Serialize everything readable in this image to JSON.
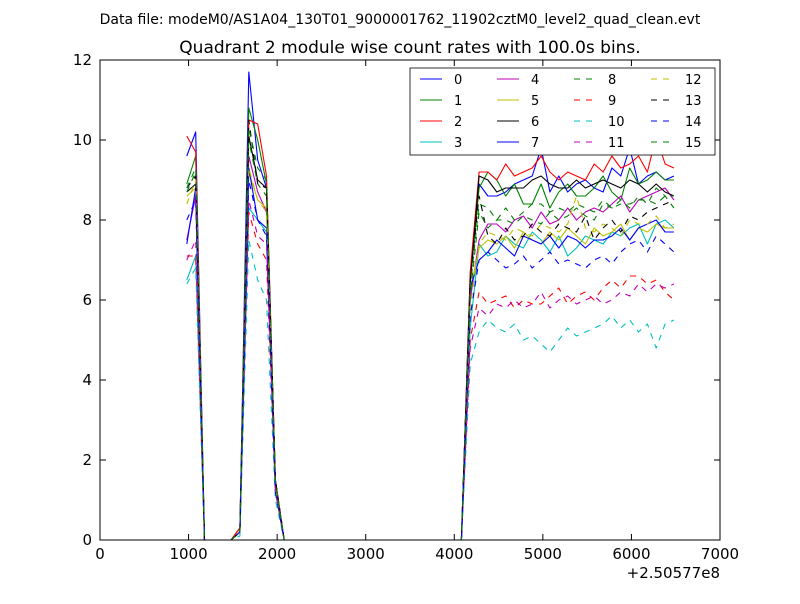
{
  "suptitle": "Data file: modeM0/AS1A04_130T01_9000001762_11902cztM0_level2_quad_clean.evt",
  "chart_data": {
    "type": "line",
    "title": "Quadrant 2 module wise count rates with 100.0s bins.",
    "xlabel": "",
    "ylabel": "",
    "x_offset_label": "+2.50577e8",
    "xlim": [
      0,
      7000
    ],
    "ylim": [
      0,
      12
    ],
    "xticks": [
      0,
      1000,
      2000,
      3000,
      4000,
      5000,
      6000,
      7000
    ],
    "yticks": [
      0,
      2,
      4,
      6,
      8,
      10,
      12
    ],
    "grid": false,
    "legend_position": "upper right",
    "legend_columns": 4,
    "x": [
      980,
      1080,
      1180,
      1280,
      1380,
      1480,
      1580,
      1680,
      1780,
      1880,
      1980,
      2080,
      2180,
      2280,
      2380,
      2480,
      2580,
      2680,
      2780,
      2880,
      2980,
      3080,
      3180,
      3280,
      3380,
      3480,
      3580,
      3680,
      3780,
      3880,
      3980,
      4080,
      4180,
      4280,
      4380,
      4480,
      4580,
      4680,
      4780,
      4880,
      4980,
      5080,
      5180,
      5280,
      5380,
      5480,
      5580,
      5680,
      5780,
      5880,
      5980,
      6080,
      6180,
      6280,
      6380,
      6480
    ],
    "series": [
      {
        "name": "0",
        "color": "#0000ff",
        "dash": "solid",
        "values": [
          9.6,
          10.2,
          0,
          0,
          0,
          0,
          0.3,
          11.7,
          9.5,
          8.8,
          1.5,
          0,
          0,
          0,
          0,
          0,
          0,
          0,
          0,
          0,
          0,
          0,
          0,
          0,
          0,
          0,
          0,
          0,
          0,
          0,
          0,
          0,
          6.6,
          8.9,
          8.6,
          8.6,
          8.7,
          8.9,
          9.0,
          9.1,
          9.8,
          8.7,
          9.1,
          8.7,
          8.9,
          9.0,
          8.8,
          8.7,
          9.3,
          9.1,
          9.8,
          8.9,
          9.1,
          9.2,
          9.0,
          9.1
        ]
      },
      {
        "name": "1",
        "color": "#008000",
        "dash": "solid",
        "values": [
          8.9,
          9.6,
          0,
          0,
          0,
          0,
          0.3,
          10.8,
          10.0,
          8.9,
          1.5,
          0,
          0,
          0,
          0,
          0,
          0,
          0,
          0,
          0,
          0,
          0,
          0,
          0,
          0,
          0,
          0,
          0,
          0,
          0,
          0,
          0,
          6.5,
          8.8,
          9.2,
          9.0,
          8.6,
          8.9,
          8.4,
          8.4,
          8.9,
          8.3,
          8.7,
          8.9,
          8.6,
          8.6,
          8.8,
          9.1,
          8.7,
          8.5,
          9.3,
          8.9,
          9.0,
          9.2,
          9.0,
          9.0
        ]
      },
      {
        "name": "2",
        "color": "#ff0000",
        "dash": "solid",
        "values": [
          10.1,
          9.7,
          0,
          0,
          0,
          0,
          0.3,
          10.5,
          10.4,
          9.1,
          1.5,
          0,
          0,
          0,
          0,
          0,
          0,
          0,
          0,
          0,
          0,
          0,
          0,
          0,
          0,
          0,
          0,
          0,
          0,
          0,
          0,
          0,
          6.7,
          9.2,
          9.2,
          9.0,
          9.4,
          9.1,
          9.2,
          9.3,
          9.6,
          9.2,
          9.0,
          9.2,
          9.1,
          9.0,
          9.4,
          9.2,
          9.6,
          9.3,
          9.4,
          9.6,
          9.2,
          10.1,
          9.4,
          9.3
        ]
      },
      {
        "name": "3",
        "color": "#00bfbf",
        "dash": "solid",
        "values": [
          6.5,
          7.1,
          0,
          0,
          0,
          0,
          0.2,
          8.3,
          8.0,
          7.7,
          1.2,
          0,
          0,
          0,
          0,
          0,
          0,
          0,
          0,
          0,
          0,
          0,
          0,
          0,
          0,
          0,
          0,
          0,
          0,
          0,
          0,
          0,
          5.3,
          7.4,
          7.1,
          7.2,
          7.6,
          7.4,
          7.3,
          7.7,
          7.5,
          7.2,
          7.6,
          7.1,
          7.3,
          7.6,
          7.5,
          7.4,
          7.7,
          7.6,
          7.8,
          7.9,
          7.4,
          7.9,
          8.0,
          7.8
        ]
      },
      {
        "name": "4",
        "color": "#bf00bf",
        "dash": "solid",
        "values": [
          7.5,
          8.6,
          0,
          0,
          0,
          0,
          0.2,
          9.6,
          8.7,
          8.2,
          1.4,
          0,
          0,
          0,
          0,
          0,
          0,
          0,
          0,
          0,
          0,
          0,
          0,
          0,
          0,
          0,
          0,
          0,
          0,
          0,
          0,
          0,
          6.0,
          7.5,
          7.9,
          7.9,
          7.7,
          8.0,
          8.1,
          7.8,
          8.2,
          7.9,
          8.0,
          8.3,
          8.0,
          8.2,
          8.3,
          8.2,
          8.4,
          8.6,
          8.2,
          8.5,
          8.6,
          8.7,
          8.8,
          8.5
        ]
      },
      {
        "name": "5",
        "color": "#bfbf00",
        "dash": "solid",
        "values": [
          8.6,
          8.8,
          0,
          0,
          0,
          0,
          0.2,
          9.2,
          8.5,
          8.3,
          1.4,
          0,
          0,
          0,
          0,
          0,
          0,
          0,
          0,
          0,
          0,
          0,
          0,
          0,
          0,
          0,
          0,
          0,
          0,
          0,
          0,
          0,
          6.2,
          7.3,
          7.5,
          7.4,
          7.6,
          7.3,
          7.7,
          7.5,
          7.4,
          7.7,
          7.5,
          7.8,
          7.6,
          7.4,
          7.8,
          7.6,
          7.7,
          7.9,
          7.5,
          7.8,
          7.7,
          7.9,
          7.8,
          7.8
        ]
      },
      {
        "name": "6",
        "color": "#000000",
        "dash": "solid",
        "values": [
          8.7,
          8.9,
          0,
          0,
          0,
          0,
          0.2,
          10.1,
          9.0,
          8.8,
          1.4,
          0,
          0,
          0,
          0,
          0,
          0,
          0,
          0,
          0,
          0,
          0,
          0,
          0,
          0,
          0,
          0,
          0,
          0,
          0,
          0,
          0,
          6.4,
          9.1,
          9.0,
          8.7,
          8.8,
          8.8,
          8.8,
          9.0,
          9.1,
          8.9,
          8.8,
          8.8,
          9.0,
          8.8,
          8.9,
          9.0,
          8.9,
          8.8,
          9.0,
          8.9,
          8.7,
          8.9,
          8.7,
          8.6
        ]
      },
      {
        "name": "7",
        "color": "#0000ff",
        "dash": "solid",
        "values": [
          7.4,
          8.8,
          0,
          0,
          0,
          0,
          0.2,
          9.3,
          8.0,
          7.8,
          1.3,
          0,
          0,
          0,
          0,
          0,
          0,
          0,
          0,
          0,
          0,
          0,
          0,
          0,
          0,
          0,
          0,
          0,
          0,
          0,
          0,
          0,
          6.3,
          7.0,
          7.2,
          7.5,
          7.3,
          7.1,
          7.6,
          7.5,
          7.4,
          7.6,
          7.3,
          7.6,
          7.5,
          7.3,
          7.5,
          7.5,
          7.6,
          7.8,
          7.5,
          7.8,
          7.9,
          8.0,
          7.7,
          7.7
        ]
      },
      {
        "name": "8",
        "color": "#008000",
        "dash": "dashed",
        "values": [
          8.7,
          9.2,
          0,
          0,
          0,
          0,
          0.2,
          10.0,
          8.9,
          8.6,
          1.4,
          0,
          0,
          0,
          0,
          0,
          0,
          0,
          0,
          0,
          0,
          0,
          0,
          0,
          0,
          0,
          0,
          0,
          0,
          0,
          0,
          0,
          6.3,
          8.4,
          8.3,
          8.0,
          8.3,
          8.0,
          8.2,
          8.4,
          8.4,
          8.2,
          8.3,
          8.2,
          8.4,
          8.3,
          8.2,
          8.5,
          8.3,
          8.4,
          8.4,
          8.5,
          8.5,
          8.4,
          8.6,
          8.6
        ]
      },
      {
        "name": "9",
        "color": "#ff0000",
        "dash": "dashed",
        "values": [
          7.1,
          7.1,
          0,
          0,
          0,
          0,
          0.2,
          8.2,
          7.4,
          7.0,
          1.2,
          0,
          0,
          0,
          0,
          0,
          0,
          0,
          0,
          0,
          0,
          0,
          0,
          0,
          0,
          0,
          0,
          0,
          0,
          0,
          0,
          0,
          5.0,
          6.2,
          5.9,
          6.0,
          6.1,
          5.8,
          6.0,
          5.9,
          5.9,
          6.1,
          6.3,
          5.9,
          6.1,
          6.2,
          6.0,
          6.3,
          6.5,
          6.3,
          6.6,
          6.6,
          6.4,
          6.5,
          6.2,
          6.0
        ]
      },
      {
        "name": "10",
        "color": "#00bfbf",
        "dash": "dashed",
        "values": [
          6.4,
          6.8,
          0,
          0,
          0,
          0,
          0.1,
          7.5,
          6.5,
          6.0,
          1.0,
          0,
          0,
          0,
          0,
          0,
          0,
          0,
          0,
          0,
          0,
          0,
          0,
          0,
          0,
          0,
          0,
          0,
          0,
          0,
          0,
          0,
          4.4,
          5.2,
          5.5,
          5.3,
          5.2,
          5.4,
          5.0,
          5.1,
          4.9,
          4.7,
          5.0,
          5.3,
          5.1,
          5.2,
          5.3,
          5.4,
          5.6,
          5.3,
          5.5,
          5.2,
          5.4,
          4.8,
          5.4,
          5.5
        ]
      },
      {
        "name": "11",
        "color": "#bf00bf",
        "dash": "dashed",
        "values": [
          7.0,
          7.5,
          0,
          0,
          0,
          0,
          0.2,
          8.5,
          7.6,
          7.4,
          1.2,
          0,
          0,
          0,
          0,
          0,
          0,
          0,
          0,
          0,
          0,
          0,
          0,
          0,
          0,
          0,
          0,
          0,
          0,
          0,
          0,
          0,
          4.8,
          5.8,
          5.6,
          5.9,
          5.8,
          6.0,
          5.8,
          5.9,
          6.2,
          5.8,
          6.0,
          6.1,
          5.9,
          6.0,
          6.1,
          5.9,
          6.0,
          6.2,
          6.1,
          6.4,
          6.2,
          6.4,
          6.3,
          6.4
        ]
      },
      {
        "name": "12",
        "color": "#bfbf00",
        "dash": "dashed",
        "values": [
          8.4,
          9.0,
          0,
          0,
          0,
          0,
          0.2,
          9.3,
          8.5,
          8.2,
          1.3,
          0,
          0,
          0,
          0,
          0,
          0,
          0,
          0,
          0,
          0,
          0,
          0,
          0,
          0,
          0,
          0,
          0,
          0,
          0,
          0,
          0,
          5.8,
          7.4,
          7.7,
          7.6,
          7.5,
          7.8,
          7.7,
          7.6,
          7.9,
          7.8,
          7.7,
          7.9,
          8.6,
          7.8,
          7.7,
          7.9,
          7.8,
          7.6,
          8.0,
          7.9,
          7.9,
          8.1,
          7.8,
          7.9
        ]
      },
      {
        "name": "13",
        "color": "#000000",
        "dash": "dashed",
        "values": [
          8.8,
          9.1,
          0,
          0,
          0,
          0,
          0.2,
          10.5,
          8.9,
          8.8,
          1.5,
          0,
          0,
          0,
          0,
          0,
          0,
          0,
          0,
          0,
          0,
          0,
          0,
          0,
          0,
          0,
          0,
          0,
          0,
          0,
          0,
          0,
          6.5,
          8.6,
          7.6,
          7.4,
          7.8,
          7.5,
          7.6,
          7.9,
          7.7,
          7.6,
          7.9,
          7.8,
          7.7,
          8.1,
          7.5,
          7.8,
          8.0,
          7.7,
          8.1,
          8.0,
          8.2,
          8.3,
          8.4,
          8.5
        ]
      },
      {
        "name": "14",
        "color": "#0000ff",
        "dash": "dashed",
        "values": [
          8.0,
          8.5,
          0,
          0,
          0,
          0,
          0.2,
          9.0,
          8.0,
          7.6,
          1.2,
          0,
          0,
          0,
          0,
          0,
          0,
          0,
          0,
          0,
          0,
          0,
          0,
          0,
          0,
          0,
          0,
          0,
          0,
          0,
          0,
          0,
          5.6,
          7.0,
          7.2,
          7.0,
          6.8,
          6.9,
          7.1,
          6.8,
          7.0,
          7.2,
          6.9,
          7.0,
          6.9,
          6.8,
          7.0,
          7.1,
          6.9,
          7.2,
          7.4,
          7.5,
          7.2,
          7.6,
          7.4,
          7.2
        ]
      },
      {
        "name": "15",
        "color": "#008000",
        "dash": "dashed",
        "values": [
          8.8,
          9.3,
          0,
          0,
          0,
          0,
          0.2,
          10.3,
          9.3,
          9.0,
          1.4,
          0,
          0,
          0,
          0,
          0,
          0,
          0,
          0,
          0,
          0,
          0,
          0,
          0,
          0,
          0,
          0,
          0,
          0,
          0,
          0,
          0,
          6.1,
          8.2,
          7.8,
          8.0,
          8.0,
          7.9,
          8.1,
          8.0,
          7.9,
          8.2,
          8.0,
          8.1,
          8.3,
          8.1,
          8.0,
          8.4,
          8.3,
          8.5,
          8.3,
          8.6,
          8.4,
          8.8,
          8.6,
          8.3
        ]
      }
    ]
  }
}
